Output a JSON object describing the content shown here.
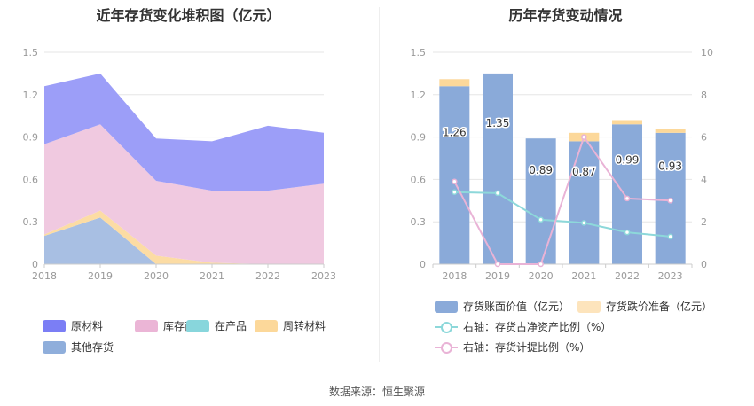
{
  "left_chart": {
    "title": "近年存货变化堆积图（亿元）"
  },
  "right_chart": {
    "title": "历年存货变动情况"
  },
  "source": "数据来源：恒生聚源",
  "chart_data": [
    {
      "type": "area",
      "title": "近年存货变化堆积图（亿元）",
      "x": [
        "2018",
        "2019",
        "2020",
        "2021",
        "2022",
        "2023"
      ],
      "ylim": [
        0,
        1.5
      ],
      "yticks": [
        "0",
        "0.3",
        "0.6",
        "0.9",
        "1.2",
        "1.5"
      ],
      "stacked": true,
      "series": [
        {
          "name": "其他存货",
          "color": "#a8bfe3",
          "values": [
            0.2,
            0.33,
            0.0,
            0.0,
            0.0,
            0.0
          ]
        },
        {
          "name": "周转材料",
          "color": "#fcdca4",
          "values": [
            0.01,
            0.05,
            0.06,
            0.01,
            0.0,
            0.0
          ]
        },
        {
          "name": "在产品",
          "color": "#88d6dc",
          "values": [
            0.0,
            0.0,
            0.0,
            0.0,
            0.0,
            0.0
          ]
        },
        {
          "name": "库存商品",
          "color": "#f0c9e0",
          "values": [
            0.64,
            0.61,
            0.53,
            0.51,
            0.52,
            0.57
          ]
        },
        {
          "name": "原材料",
          "color": "#9c9ef8",
          "values": [
            0.41,
            0.36,
            0.3,
            0.35,
            0.46,
            0.36
          ]
        }
      ],
      "legend": [
        {
          "name": "原材料",
          "color": "#7b7ef5"
        },
        {
          "name": "库存商品",
          "color": "#ebb5d6"
        },
        {
          "name": "在产品",
          "color": "#88d6dc"
        },
        {
          "name": "周转材料",
          "color": "#fcd89a"
        },
        {
          "name": "其他存货",
          "color": "#8faedb"
        }
      ],
      "legend_position": "bottom"
    },
    {
      "type": "bar",
      "title": "历年存货变动情况",
      "categories": [
        "2018",
        "2019",
        "2020",
        "2021",
        "2022",
        "2023"
      ],
      "ylim": [
        0,
        1.5
      ],
      "yticks": [
        "0",
        "0.3",
        "0.6",
        "0.9",
        "1.2",
        "1.5"
      ],
      "y2lim": [
        0,
        10
      ],
      "y2ticks": [
        "0",
        "2",
        "4",
        "6",
        "8",
        "10"
      ],
      "series": [
        {
          "name": "存货账面价值（亿元）",
          "color": "#8aaad9",
          "stack": "inv",
          "axis": "left",
          "values": [
            1.26,
            1.35,
            0.89,
            0.87,
            0.99,
            0.93
          ],
          "labels": [
            "1.26",
            "1.35",
            "0.89",
            "0.87",
            "0.99",
            "0.93"
          ]
        },
        {
          "name": "存货跌价准备（亿元）",
          "color": "#fcd89a",
          "stack": "inv",
          "axis": "left",
          "values": [
            0.05,
            0.0,
            0.0,
            0.06,
            0.03,
            0.03
          ]
        },
        {
          "name": "右轴：存货占净资产比例（%）",
          "type": "line",
          "color": "#8dd8da",
          "axis": "right",
          "values": [
            3.4,
            3.35,
            2.1,
            1.95,
            1.5,
            1.3
          ]
        },
        {
          "name": "右轴：存货计提比例（%）",
          "type": "line",
          "color": "#e9b3d6",
          "axis": "right",
          "values": [
            3.9,
            0.0,
            0.0,
            6.0,
            3.1,
            3.0
          ]
        }
      ],
      "legend_position": "bottom"
    }
  ]
}
